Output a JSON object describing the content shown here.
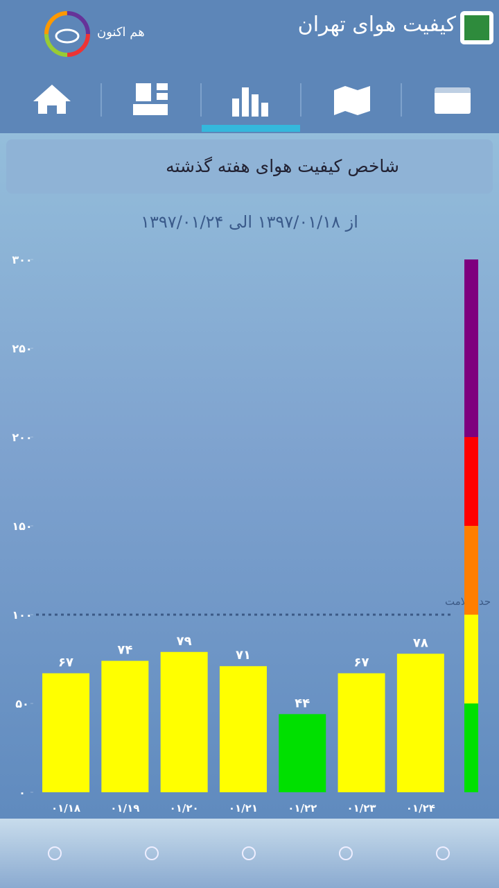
{
  "header": {
    "title": "کیفیت هوای تهران",
    "now_label": "هم اکنون"
  },
  "panel": {
    "title": "شاخص کیفیت هوای هفته گذشته",
    "date_range": "از ۱۳۹۷/۰۱/۱۸  الی ۱۳۹۷/۰۱/۲۴"
  },
  "chart_data": {
    "type": "bar",
    "categories": [
      "۰۱/۱۸",
      "۰۱/۱۹",
      "۰۱/۲۰",
      "۰۱/۲۱",
      "۰۱/۲۲",
      "۰۱/۲۳",
      "۰۱/۲۴"
    ],
    "values": [
      67,
      74,
      79,
      71,
      44,
      67,
      78
    ],
    "value_labels": [
      "۶۷",
      "۷۴",
      "۷۹",
      "۷۱",
      "۴۴",
      "۶۷",
      "۷۸"
    ],
    "colors": [
      "#ffff00",
      "#ffff00",
      "#ffff00",
      "#ffff00",
      "#00e000",
      "#ffff00",
      "#ffff00"
    ],
    "ylim": [
      0,
      300
    ],
    "yticks": [
      {
        "value": 0,
        "label": "۰"
      },
      {
        "value": 50,
        "label": "۵۰"
      },
      {
        "value": 100,
        "label": "۱۰۰"
      },
      {
        "value": 150,
        "label": "۱۵۰"
      },
      {
        "value": 200,
        "label": "۲۰۰"
      },
      {
        "value": 250,
        "label": "۲۵۰"
      },
      {
        "value": 300,
        "label": "۳۰۰"
      }
    ],
    "threshold": {
      "value": 100,
      "label": "حد سلامت"
    },
    "scale": [
      {
        "from": 0,
        "to": 50,
        "color": "#00e000"
      },
      {
        "from": 50,
        "to": 100,
        "color": "#ffff00"
      },
      {
        "from": 100,
        "to": 150,
        "color": "#ff7e00"
      },
      {
        "from": 150,
        "to": 200,
        "color": "#ff0000"
      },
      {
        "from": 200,
        "to": 300,
        "color": "#7e007e"
      }
    ]
  }
}
